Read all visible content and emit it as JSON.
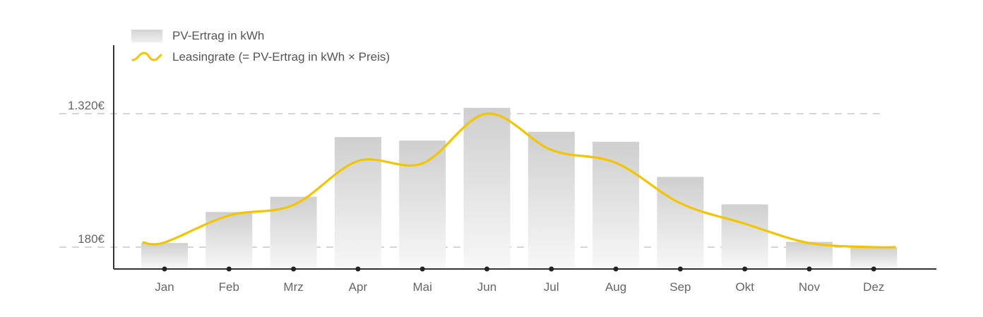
{
  "chart_data": {
    "type": "bar",
    "categories": [
      "Jan",
      "Feb",
      "Mrz",
      "Apr",
      "Mai",
      "Jun",
      "Jul",
      "Aug",
      "Sep",
      "Okt",
      "Nov",
      "Dez"
    ],
    "series": [
      {
        "name": "PV-Ertrag in kWh",
        "type": "bar",
        "values": [
          215,
          480,
          610,
          1120,
          1090,
          1370,
          1165,
          1080,
          780,
          545,
          225,
          175
        ]
      },
      {
        "name": "Leasingrate (= PV-Ertrag in kWh × Preis)",
        "type": "line",
        "values": [
          220,
          450,
          540,
          915,
          895,
          1320,
          1010,
          900,
          555,
          380,
          215,
          180
        ]
      }
    ],
    "y_ticks": [
      {
        "value": 180,
        "label": "180€"
      },
      {
        "value": 1320,
        "label": "1.320€"
      }
    ],
    "ylim": [
      0,
      1400
    ],
    "grid": "dashed at labeled ticks",
    "legend": "top-left",
    "colors": {
      "bar_top": "#cfcfcf",
      "bar_bottom": "#f7f7f7",
      "line": "#f2c500",
      "axis": "#333333",
      "grid": "#c8c8c8",
      "text": "#666666"
    }
  }
}
